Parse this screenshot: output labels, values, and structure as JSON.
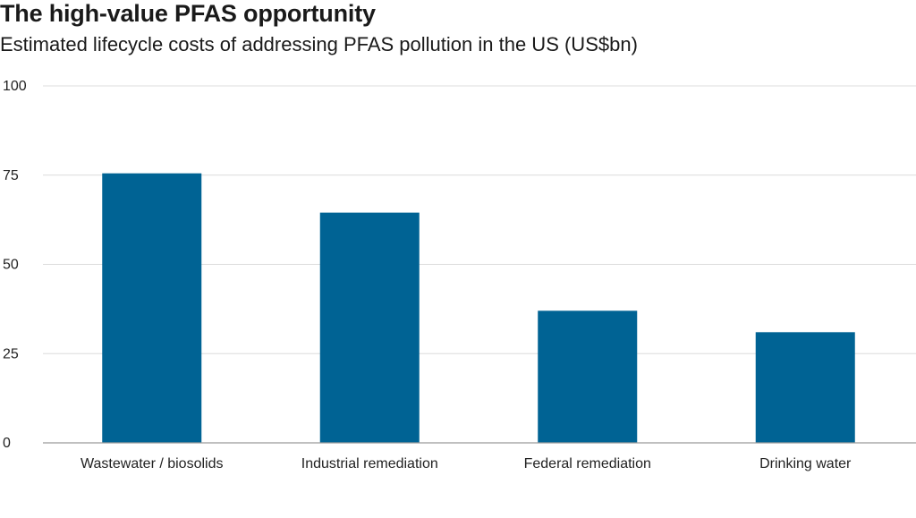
{
  "chart_data": {
    "type": "bar",
    "title": "The high-value PFAS opportunity",
    "subtitle": "Estimated lifecycle costs of addressing PFAS pollution in the US (US$bn)",
    "xlabel": "",
    "ylabel": "",
    "categories": [
      "Wastewater / biosolids",
      "Industrial remediation",
      "Federal remediation",
      "Drinking water"
    ],
    "values": [
      75.5,
      64.5,
      37,
      31
    ],
    "ylim": [
      0,
      100
    ],
    "yticks": [
      0,
      25,
      50,
      75,
      100
    ],
    "ytick_labels": [
      "0",
      "25",
      "50",
      "75",
      "100"
    ],
    "grid": true,
    "legend": "none",
    "colors": {
      "bar": "#006394",
      "grid": "#dcdcdc",
      "axis": "#9a9a9a"
    }
  }
}
